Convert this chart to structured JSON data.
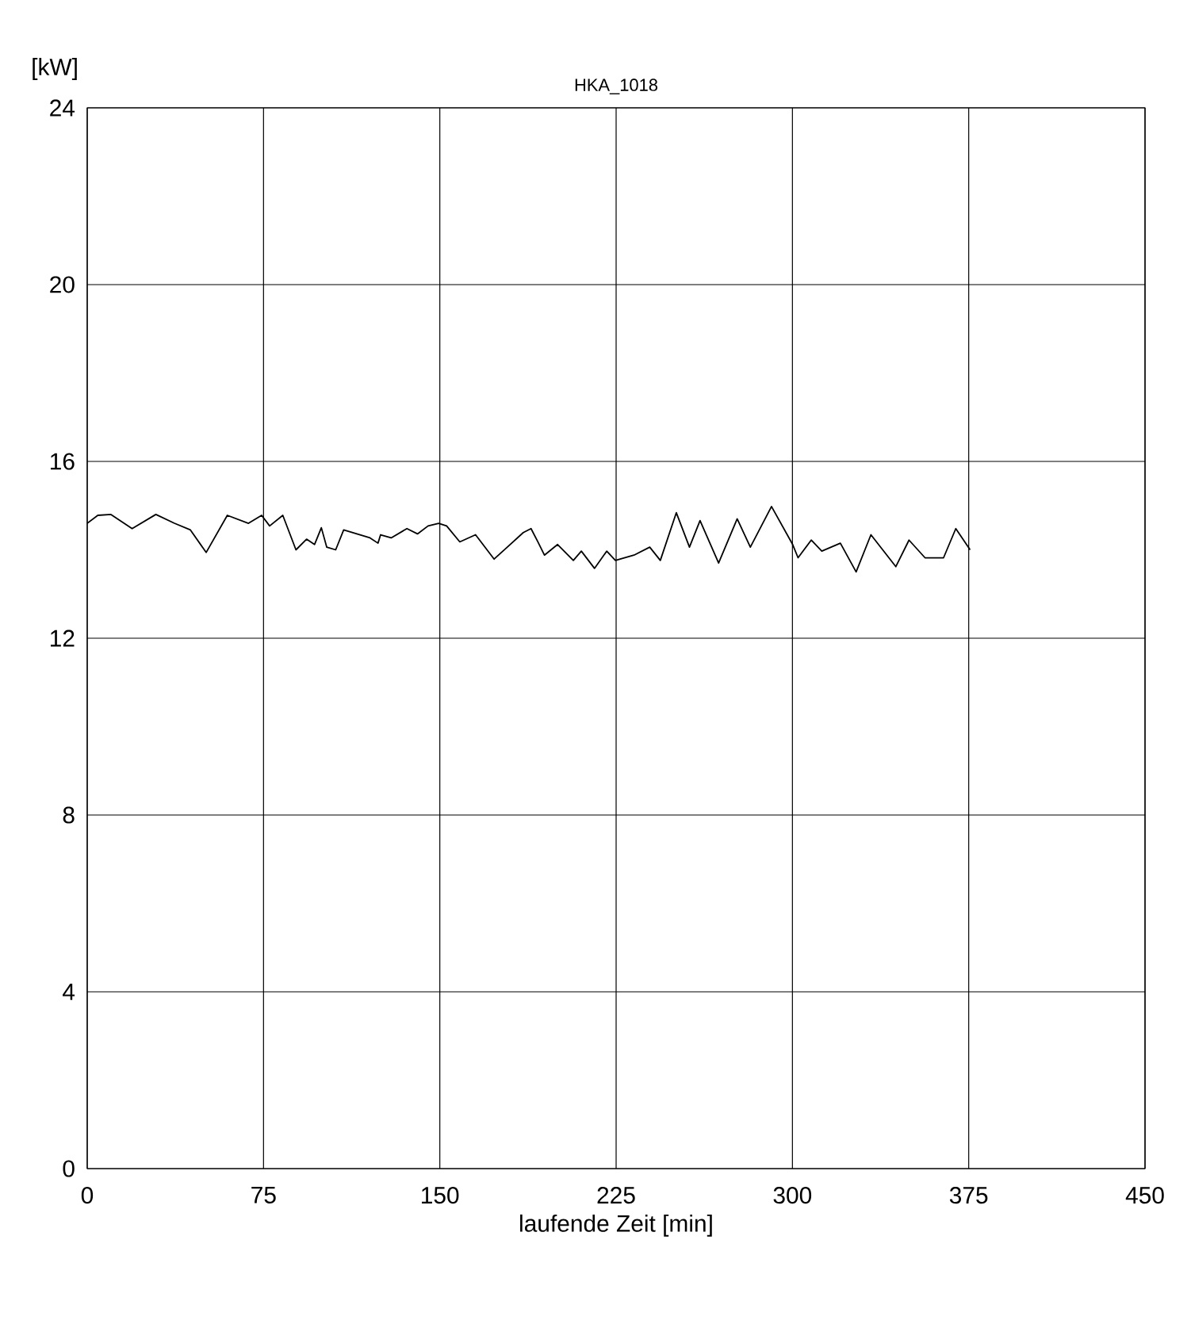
{
  "chart_data": {
    "type": "line",
    "title": "HKA_1018",
    "xlabel": "laufende Zeit [min]",
    "ylabel": "[kW]",
    "xlim": [
      0,
      450
    ],
    "ylim": [
      0,
      24
    ],
    "xticks": [
      0,
      75,
      150,
      225,
      300,
      375,
      450
    ],
    "yticks": [
      0,
      4,
      8,
      12,
      16,
      20,
      24
    ],
    "grid": true,
    "series": [
      {
        "color": "#000000",
        "x": [
          0,
          4.5,
          10.1,
          19.1,
          29.2,
          37.1,
          43.9,
          50.6,
          59.6,
          68.6,
          74.2,
          77.6,
          83.2,
          88.8,
          93.3,
          96.7,
          99.6,
          101.9,
          105.7,
          109.1,
          120.3,
          123.7,
          124.8,
          129.3,
          136.0,
          140.5,
          145.0,
          149.5,
          152.9,
          158.5,
          165.2,
          173.1,
          178.7,
          185.5,
          188.8,
          191.7,
          194.5,
          200.1,
          206.8,
          210.2,
          215.8,
          221.0,
          224.7,
          232.6,
          239.3,
          243.8,
          250.6,
          256.2,
          260.7,
          268.6,
          276.5,
          282.1,
          291.1,
          300.1,
          302.4,
          308.0,
          312.5,
          320.4,
          327.1,
          333.4,
          344.0,
          349.6,
          356.4,
          364.3,
          369.5,
          375.6
        ],
        "values": [
          14.6,
          14.78,
          14.8,
          14.48,
          14.8,
          14.6,
          14.45,
          13.94,
          14.78,
          14.6,
          14.78,
          14.54,
          14.78,
          14.0,
          14.24,
          14.12,
          14.5,
          14.06,
          14.0,
          14.45,
          14.27,
          14.15,
          14.34,
          14.27,
          14.48,
          14.36,
          14.54,
          14.6,
          14.54,
          14.18,
          14.34,
          13.79,
          14.06,
          14.39,
          14.48,
          14.18,
          13.88,
          14.12,
          13.76,
          13.97,
          13.58,
          13.97,
          13.76,
          13.88,
          14.06,
          13.76,
          14.84,
          14.06,
          14.66,
          13.7,
          14.7,
          14.06,
          14.98,
          14.12,
          13.82,
          14.22,
          13.97,
          14.15,
          13.5,
          14.34,
          13.62,
          14.22,
          13.82,
          13.82,
          14.48,
          14.0
        ]
      }
    ]
  }
}
